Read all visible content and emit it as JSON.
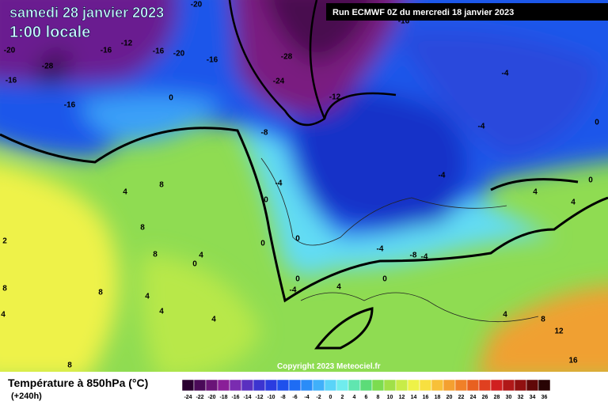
{
  "header": {
    "title": "samedi 28 janvier 2023",
    "subtitle": "1:00 locale",
    "run": "Run ECMWF 0Z du mercredi 18 janvier 2023",
    "copyright": "Copyright 2023 Meteociel.fr"
  },
  "legend": {
    "title": "Température à 850hPa (°C)",
    "lead": "(+240h)",
    "scale": [
      -24,
      -22,
      -20,
      -18,
      -16,
      -14,
      -12,
      -10,
      -8,
      -6,
      -4,
      -2,
      0,
      2,
      4,
      6,
      8,
      10,
      12,
      14,
      16,
      18,
      20,
      22,
      24,
      26,
      28,
      30,
      32,
      34,
      36
    ],
    "colors": [
      "#2a0030",
      "#4a0a58",
      "#6a1478",
      "#8a1e98",
      "#7a2cb0",
      "#5a30c0",
      "#3c34d0",
      "#2a3ce0",
      "#1e50ec",
      "#1e6cf4",
      "#2a8cf8",
      "#40b0fa",
      "#5ad4f8",
      "#70ecee",
      "#60e6b0",
      "#5cdc78",
      "#7cdc50",
      "#a0e048",
      "#c8ec48",
      "#eef248",
      "#f8e040",
      "#f8c038",
      "#f4a030",
      "#f08028",
      "#e86020",
      "#e04020",
      "#d02020",
      "#b01818",
      "#901010",
      "#600808",
      "#280404"
    ]
  },
  "contour_labels": [
    -20,
    -28,
    -16,
    -12,
    -16,
    -20,
    -16,
    -28,
    -24,
    -12,
    -16,
    -16,
    0,
    -8,
    -4,
    0,
    -4,
    0,
    -4,
    4,
    0,
    4,
    4,
    8,
    8,
    8,
    4,
    0,
    8,
    4,
    4,
    4,
    0,
    0,
    -4,
    -8,
    -4,
    0,
    -4,
    4,
    0,
    8,
    12,
    16,
    8,
    4,
    2,
    8,
    4,
    -4,
    -20,
    -16
  ]
}
